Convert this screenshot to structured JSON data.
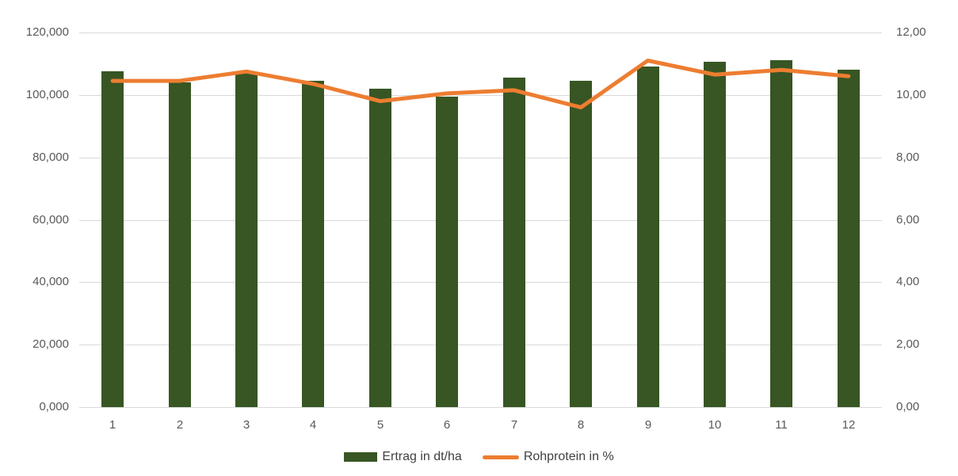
{
  "chart_data": {
    "type": "combo",
    "title": "",
    "categories": [
      "1",
      "2",
      "3",
      "4",
      "5",
      "6",
      "7",
      "8",
      "9",
      "10",
      "11",
      "12"
    ],
    "series": [
      {
        "name": "Ertrag in dt/ha",
        "type": "bar",
        "axis": "left",
        "color": "#375623",
        "values": [
          107.5,
          104.0,
          107.0,
          104.5,
          102.0,
          99.5,
          105.5,
          104.5,
          109.0,
          110.5,
          111.0,
          108.0
        ]
      },
      {
        "name": "Rohprotein in %",
        "type": "line",
        "axis": "right",
        "color": "#ED7D31",
        "values": [
          10.45,
          10.45,
          10.75,
          10.35,
          9.8,
          10.05,
          10.15,
          9.6,
          11.1,
          10.65,
          10.8,
          10.6
        ]
      }
    ],
    "left_axis": {
      "min": 0,
      "max": 120,
      "tick_labels": [
        "0,000",
        "20,000",
        "40,000",
        "60,000",
        "80,000",
        "100,000",
        "120,000"
      ]
    },
    "right_axis": {
      "min": 0,
      "max": 12,
      "tick_labels": [
        "0,00",
        "2,00",
        "4,00",
        "6,00",
        "8,00",
        "10,00",
        "12,00"
      ]
    },
    "grid": true,
    "legend_position": "bottom"
  },
  "legend": {
    "bar_label": "Ertrag in dt/ha",
    "line_label": "Rohprotein in %"
  },
  "colors": {
    "bar": "#375623",
    "line": "#ED7D31",
    "gridline": "#D9D9D9",
    "axis_text": "#595959",
    "legend_text": "#404040",
    "background": "#FFFFFF"
  }
}
